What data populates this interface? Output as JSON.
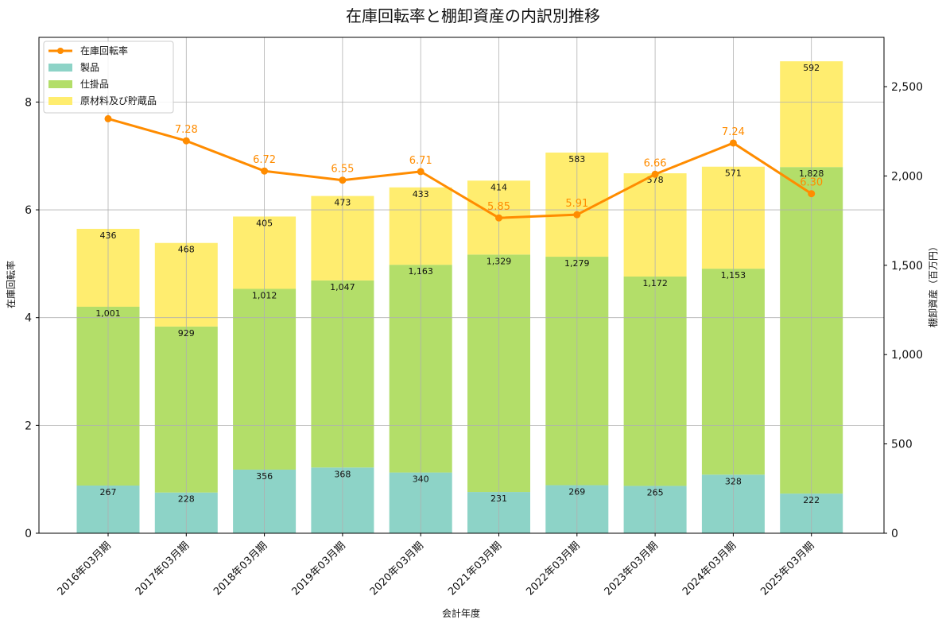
{
  "chart_data": {
    "type": "bar",
    "title": "在庫回転率と棚卸資産の内訳別推移",
    "xlabel": "会計年度",
    "ylabel_left": "在庫回転率",
    "ylabel_right": "棚卸資産（百万円）",
    "categories": [
      "2016年03月期",
      "2017年03月期",
      "2018年03月期",
      "2019年03月期",
      "2020年03月期",
      "2021年03月期",
      "2022年03月期",
      "2023年03月期",
      "2024年03月期",
      "2025年03月期"
    ],
    "stacked_series": [
      {
        "name": "製品",
        "color": "#8dd3c7",
        "values": [
          267,
          228,
          356,
          368,
          340,
          231,
          269,
          265,
          328,
          222
        ],
        "labels": [
          "267",
          "228",
          "356",
          "368",
          "340",
          "231",
          "269",
          "265",
          "328",
          "222"
        ]
      },
      {
        "name": "仕掛品",
        "color": "#b3de69",
        "values": [
          1001,
          929,
          1012,
          1047,
          1163,
          1329,
          1279,
          1172,
          1153,
          1828
        ],
        "labels": [
          "1,001",
          "929",
          "1,012",
          "1,047",
          "1,163",
          "1,329",
          "1,279",
          "1,172",
          "1,153",
          "1,828"
        ]
      },
      {
        "name": "原材料及び貯蔵品",
        "color": "#ffed6f",
        "values": [
          436,
          468,
          405,
          473,
          433,
          414,
          583,
          578,
          571,
          592
        ],
        "labels": [
          "436",
          "468",
          "405",
          "473",
          "433",
          "414",
          "583",
          "578",
          "571",
          "592"
        ]
      }
    ],
    "line_series": {
      "name": "在庫回転率",
      "color": "#ff8c00",
      "values": [
        7.69,
        7.28,
        6.72,
        6.55,
        6.71,
        5.85,
        5.91,
        6.66,
        7.24,
        6.3
      ],
      "labels": [
        "",
        "7.28",
        "6.72",
        "6.55",
        "6.71",
        "5.85",
        "5.91",
        "6.66",
        "7.24",
        "6.30"
      ]
    },
    "ylim_left": [
      0,
      9.2
    ],
    "yticks_left": [
      0,
      2,
      4,
      6,
      8
    ],
    "yticks_left_labels": [
      "0",
      "2",
      "4",
      "6",
      "8"
    ],
    "ylim_right": [
      0,
      2776
    ],
    "yticks_right": [
      0,
      500,
      1000,
      1500,
      2000,
      2500
    ],
    "yticks_right_labels": [
      "0",
      "500",
      "1,000",
      "1,500",
      "2,000",
      "2,500"
    ],
    "grid": true,
    "legend_placement": "top-left"
  }
}
